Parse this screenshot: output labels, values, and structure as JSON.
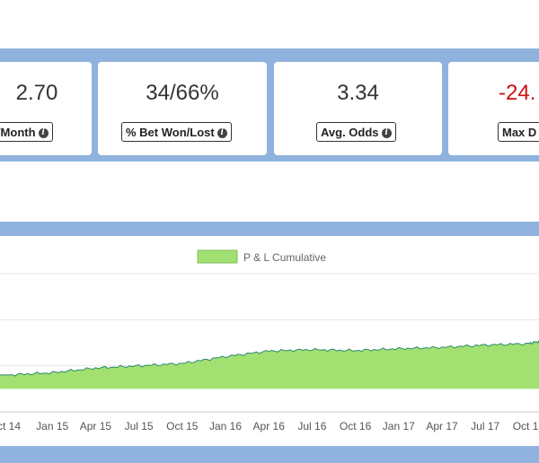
{
  "stats": [
    {
      "value": "2.70",
      "label": "L/Month",
      "tone": "pos",
      "icon": "info-icon"
    },
    {
      "value": "34/66%",
      "label": "% Bet Won/Lost",
      "tone": "neutral",
      "icon": "info-icon"
    },
    {
      "value": "3.34",
      "label": "Avg. Odds",
      "tone": "neutral",
      "icon": "info-icon"
    },
    {
      "value": "-24.",
      "label": "Max D",
      "tone": "neg",
      "icon": "info-icon"
    }
  ],
  "colors": {
    "band": "#8fb3de",
    "positive": "#2f6f2f",
    "negative": "#cc1111",
    "area_fill": "#a3e072",
    "area_line": "#2a8a6a"
  },
  "chart_data": {
    "type": "area",
    "legend": [
      {
        "name": "P & L Cumulative"
      }
    ],
    "legend_position": "top-center",
    "grid": true,
    "x_ticks": [
      "ct 14",
      "Jan 15",
      "Apr 15",
      "Jul 15",
      "Oct 15",
      "Jan 16",
      "Apr 16",
      "Jul 16",
      "Oct 16",
      "Jan 17",
      "Apr 17",
      "Jul 17",
      "Oct 17"
    ],
    "series": [
      {
        "name": "P & L Cumulative",
        "x": [
          "2014-10",
          "2015-01",
          "2015-04",
          "2015-07",
          "2015-10",
          "2016-01",
          "2016-04",
          "2016-07",
          "2016-10",
          "2017-01",
          "2017-04",
          "2017-07",
          "2017-10",
          "2017-11"
        ],
        "values": [
          0.3,
          0.35,
          0.45,
          0.5,
          0.55,
          0.7,
          0.82,
          0.85,
          0.83,
          0.87,
          0.9,
          0.95,
          0.98,
          1.05
        ]
      }
    ],
    "ylim": [
      -0.5,
      2.5
    ]
  }
}
